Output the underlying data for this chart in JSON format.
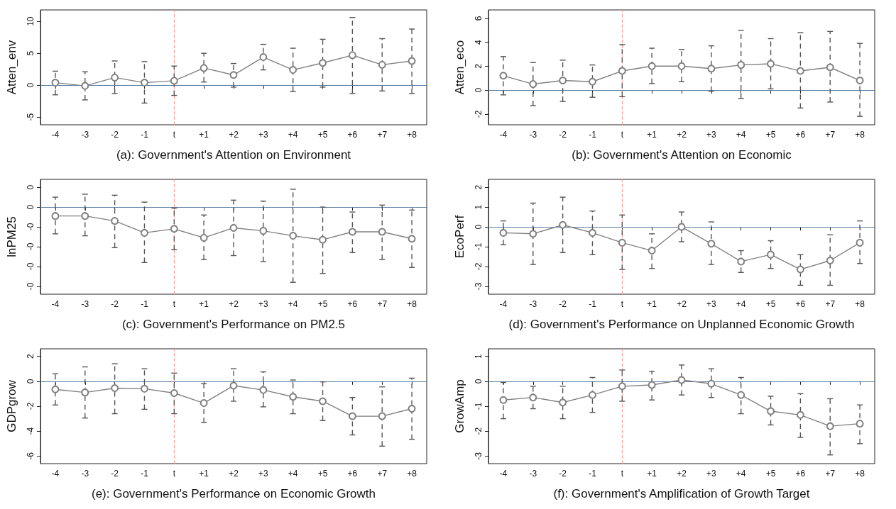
{
  "chart_data": [
    {
      "type": "line",
      "xlabel": "(a): Government's Attention on Environment",
      "ylabel": "Atten_env",
      "categories": [
        "-4",
        "-3",
        "-2",
        "-1",
        "t",
        "+1",
        "+2",
        "+3",
        "+4",
        "+5",
        "+6",
        "+7",
        "+8"
      ],
      "marker": "circle",
      "grid": false,
      "ylim": [
        -6.2,
        11.8
      ],
      "yticks": [
        -5,
        0,
        5,
        10
      ],
      "series": [
        {
          "color": "#808080",
          "values": [
            0.4,
            -0.1,
            1.2,
            0.4,
            0.7,
            2.7,
            1.6,
            4.4,
            2.4,
            3.5,
            4.7,
            3.2,
            3.8
          ],
          "errors": [
            [
              -1.5,
              2.2
            ],
            [
              -2.3,
              2.1
            ],
            [
              -1.3,
              3.8
            ],
            [
              -2.8,
              3.7
            ],
            [
              -1.6,
              3.0
            ],
            [
              0.5,
              5.0
            ],
            [
              -0.3,
              3.4
            ],
            [
              2.4,
              6.4
            ],
            [
              -1.0,
              5.8
            ],
            [
              -0.3,
              7.2
            ],
            [
              -1.3,
              10.6
            ],
            [
              -0.9,
              7.3
            ],
            [
              -1.3,
              8.8
            ]
          ]
        }
      ],
      "ref_lines": [
        {
          "axis": "y",
          "value": 0,
          "color": "#5b7fa6",
          "line_style": "solid"
        },
        {
          "axis": "x",
          "value": "t",
          "color": "#f4a0a0",
          "line_style": "dashed"
        }
      ]
    },
    {
      "type": "line",
      "xlabel": "(b): Government's Attention on Economic",
      "ylabel": "Atten_eco",
      "categories": [
        "-4",
        "-3",
        "-2",
        "-1",
        "t",
        "+1",
        "+2",
        "+3",
        "+4",
        "+5",
        "+6",
        "+7",
        "+8"
      ],
      "marker": "circle",
      "grid": false,
      "ylim": [
        -2.9,
        6.7
      ],
      "yticks": [
        -2,
        0,
        2,
        4,
        6
      ],
      "series": [
        {
          "color": "#808080",
          "values": [
            1.2,
            0.5,
            0.8,
            0.7,
            1.6,
            2.0,
            2.0,
            1.8,
            2.1,
            2.2,
            1.6,
            1.9,
            0.8
          ],
          "errors": [
            [
              -0.4,
              2.8
            ],
            [
              -1.3,
              2.3
            ],
            [
              -0.95,
              2.5
            ],
            [
              -0.6,
              2.1
            ],
            [
              -0.55,
              3.8
            ],
            [
              0.55,
              3.5
            ],
            [
              0.7,
              3.4
            ],
            [
              -0.1,
              3.7
            ],
            [
              -0.7,
              5.0
            ],
            [
              0.1,
              4.3
            ],
            [
              -1.5,
              4.8
            ],
            [
              -1.0,
              4.9
            ],
            [
              -2.2,
              3.9
            ]
          ]
        }
      ],
      "ref_lines": [
        {
          "axis": "y",
          "value": 0,
          "color": "#5b7fa6",
          "line_style": "solid"
        },
        {
          "axis": "x",
          "value": "t",
          "color": "#f4a0a0",
          "line_style": "dashed"
        }
      ]
    },
    {
      "type": "line",
      "xlabel": "(c): Government's Performance on PM2.5",
      "ylabel": "lnPM25",
      "categories": [
        "-4",
        "-3",
        "-2",
        "-1",
        "t",
        "+1",
        "+2",
        "+3",
        "+4",
        "+5",
        "+6",
        "+7",
        "+8"
      ],
      "marker": "circle",
      "grid": false,
      "ylim": [
        -0.088,
        0.028
      ],
      "yticks": [
        {
          "value": -0.08,
          "label": "-0"
        },
        {
          "value": -0.06,
          "label": "-0"
        },
        {
          "value": -0.04,
          "label": "-0"
        },
        {
          "value": -0.02,
          "label": "-0"
        },
        {
          "value": 0,
          "label": "0"
        },
        {
          "value": 0.02,
          "label": "0"
        }
      ],
      "series": [
        {
          "color": "#808080",
          "values": [
            -0.009,
            -0.009,
            -0.014,
            -0.026,
            -0.022,
            -0.031,
            -0.021,
            -0.024,
            -0.029,
            -0.033,
            -0.025,
            -0.025,
            -0.032
          ],
          "errors": [
            [
              -0.027,
              0.01
            ],
            [
              -0.029,
              0.013
            ],
            [
              -0.041,
              0.012
            ],
            [
              -0.056,
              0.005
            ],
            [
              -0.043,
              -0.001
            ],
            [
              -0.053,
              -0.008
            ],
            [
              -0.049,
              0.007
            ],
            [
              -0.055,
              0.006
            ],
            [
              -0.076,
              0.018
            ],
            [
              -0.067,
              0
            ],
            [
              -0.046,
              -0.005
            ],
            [
              -0.053,
              0.002
            ],
            [
              -0.061,
              -0.003
            ]
          ]
        }
      ],
      "ref_lines": [
        {
          "axis": "y",
          "value": 0,
          "color": "#5b7fa6",
          "line_style": "solid"
        },
        {
          "axis": "x",
          "value": "t",
          "color": "#f4a0a0",
          "line_style": "dashed"
        }
      ]
    },
    {
      "type": "line",
      "xlabel": "(d): Government's Performance on Unplanned Economic Growth",
      "ylabel": "EcoPerf",
      "categories": [
        "-4",
        "-3",
        "-2",
        "-1",
        "t",
        "+1",
        "+2",
        "+3",
        "+4",
        "+5",
        "+6",
        "+7",
        "+8"
      ],
      "marker": "circle",
      "grid": false,
      "ylim": [
        -3.4,
        2.4
      ],
      "yticks": [
        -3,
        -2,
        -1,
        0,
        1,
        2
      ],
      "series": [
        {
          "color": "#808080",
          "values": [
            -0.3,
            -0.35,
            0.1,
            -0.3,
            -0.8,
            -1.2,
            0,
            -0.85,
            -1.75,
            -1.4,
            -2.15,
            -1.7,
            -0.8
          ],
          "errors": [
            [
              -0.9,
              0.3
            ],
            [
              -1.9,
              1.2
            ],
            [
              -1.3,
              1.5
            ],
            [
              -1.4,
              0.8
            ],
            [
              -2.15,
              0.6
            ],
            [
              -2.1,
              -0.35
            ],
            [
              -0.75,
              0.75
            ],
            [
              -1.9,
              0.25
            ],
            [
              -2.3,
              -1.2
            ],
            [
              -2.1,
              -0.7
            ],
            [
              -2.95,
              -1.4
            ],
            [
              -2.95,
              -0.4
            ],
            [
              -1.85,
              0.3
            ]
          ]
        }
      ],
      "ref_lines": [
        {
          "axis": "y",
          "value": 0,
          "color": "#5b7fa6",
          "line_style": "solid"
        },
        {
          "axis": "x",
          "value": "t",
          "color": "#f4a0a0",
          "line_style": "dashed"
        }
      ]
    },
    {
      "type": "line",
      "xlabel": "(e): Government's Performance on Economic Growth",
      "ylabel": "GDPgrow",
      "categories": [
        "-4",
        "-3",
        "-2",
        "-1",
        "t",
        "+1",
        "+2",
        "+3",
        "+4",
        "+5",
        "+6",
        "+7",
        "+8"
      ],
      "marker": "circle",
      "grid": false,
      "ylim": [
        -6.6,
        2.6
      ],
      "yticks": [
        -6,
        -4,
        -2,
        0,
        2
      ],
      "series": [
        {
          "color": "#808080",
          "values": [
            -0.65,
            -0.9,
            -0.55,
            -0.6,
            -0.95,
            -1.75,
            -0.35,
            -0.7,
            -1.25,
            -1.6,
            -2.8,
            -2.8,
            -2.2
          ],
          "errors": [
            [
              -1.9,
              0.6
            ],
            [
              -2.95,
              1.15
            ],
            [
              -2.6,
              1.4
            ],
            [
              -2.25,
              1.0
            ],
            [
              -2.6,
              0.65
            ],
            [
              -3.3,
              -0.2
            ],
            [
              -1.6,
              1.0
            ],
            [
              -2.05,
              0.75
            ],
            [
              -2.6,
              0.1
            ],
            [
              -3.15,
              -0.05
            ],
            [
              -4.3,
              -1.3
            ],
            [
              -5.2,
              -0.45
            ],
            [
              -4.65,
              0.25
            ]
          ]
        }
      ],
      "ref_lines": [
        {
          "axis": "y",
          "value": 0,
          "color": "#5b7fa6",
          "line_style": "solid"
        },
        {
          "axis": "x",
          "value": "t",
          "color": "#f4a0a0",
          "line_style": "dashed"
        }
      ]
    },
    {
      "type": "line",
      "xlabel": "(f): Government's Amplification of Growth Target",
      "ylabel": "GrowAmp",
      "categories": [
        "-4",
        "-3",
        "-2",
        "-1",
        "t",
        "+1",
        "+2",
        "+3",
        "+4",
        "+5",
        "+6",
        "+7",
        "+8"
      ],
      "marker": "circle",
      "grid": false,
      "ylim": [
        -3.3,
        1.3
      ],
      "yticks": [
        -3,
        -2,
        -1,
        0,
        1
      ],
      "series": [
        {
          "color": "#808080",
          "values": [
            -0.75,
            -0.65,
            -0.85,
            -0.55,
            -0.2,
            -0.15,
            0.05,
            -0.1,
            -0.55,
            -1.2,
            -1.35,
            -1.8,
            -1.7
          ],
          "errors": [
            [
              -1.5,
              -0.05
            ],
            [
              -1.1,
              -0.2
            ],
            [
              -1.5,
              -0.2
            ],
            [
              -1.25,
              0.15
            ],
            [
              -0.8,
              0.45
            ],
            [
              -0.75,
              0.4
            ],
            [
              -0.55,
              0.65
            ],
            [
              -0.65,
              0.5
            ],
            [
              -1.3,
              0.15
            ],
            [
              -1.75,
              -0.6
            ],
            [
              -2.25,
              -0.5
            ],
            [
              -2.95,
              -0.7
            ],
            [
              -2.5,
              -0.95
            ]
          ]
        }
      ],
      "ref_lines": [
        {
          "axis": "y",
          "value": 0,
          "color": "#5b7fa6",
          "line_style": "solid"
        },
        {
          "axis": "x",
          "value": "t",
          "color": "#f4a0a0",
          "line_style": "dashed"
        }
      ]
    }
  ]
}
